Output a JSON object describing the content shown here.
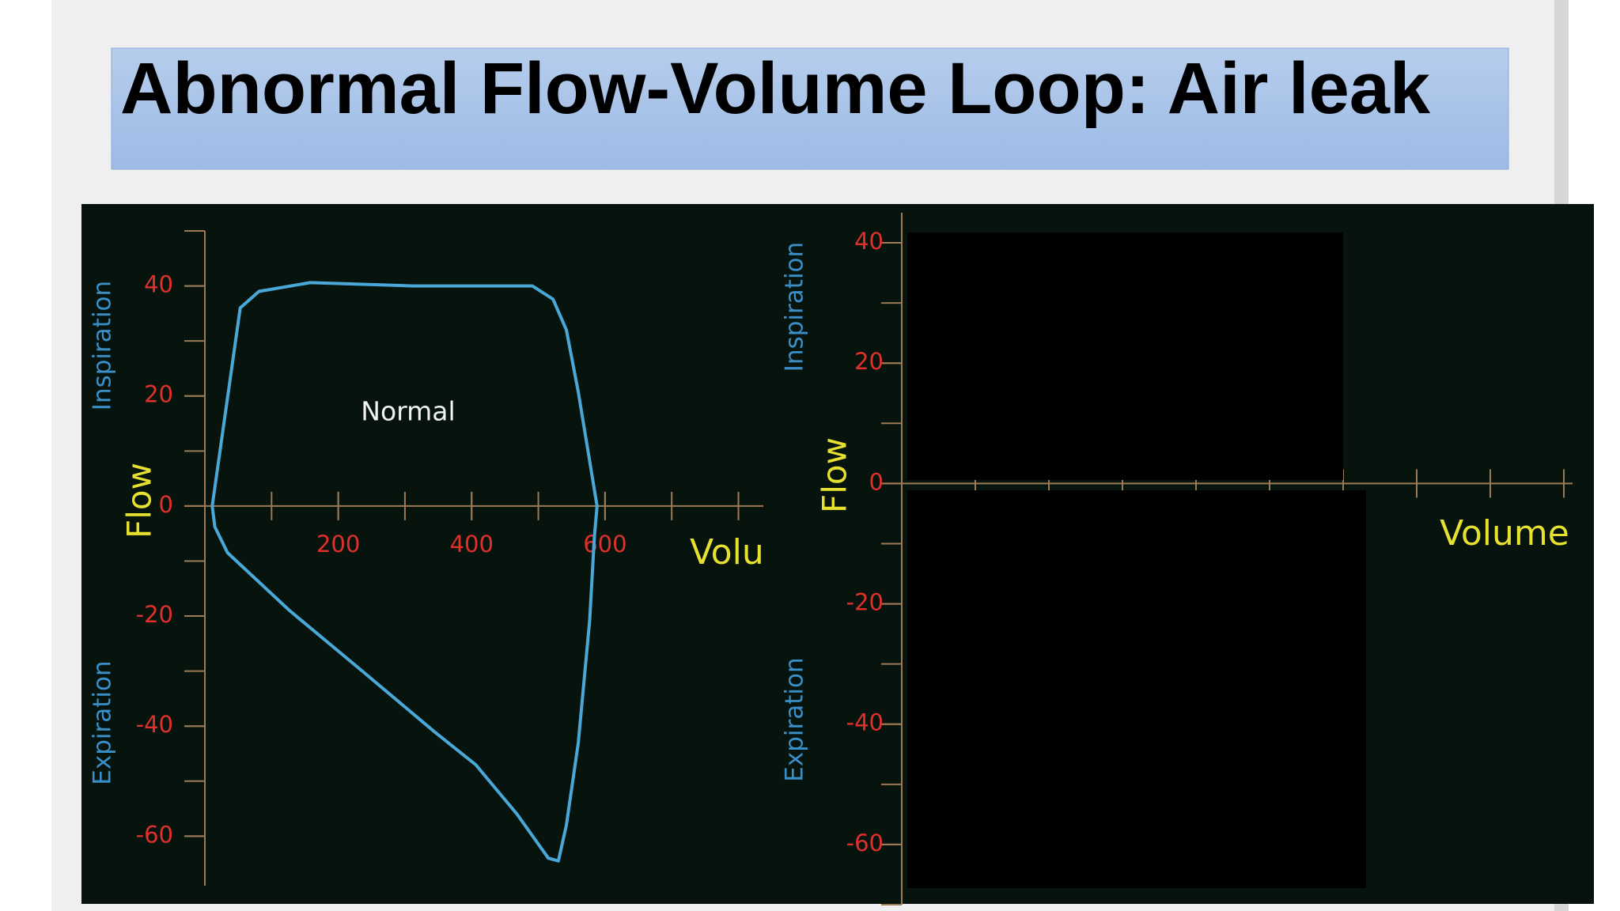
{
  "title": "Abnormal Flow-Volume Loop: Air leak",
  "chart_data": [
    {
      "type": "line",
      "x_label": "Volu",
      "y_label": "Flow",
      "annotations": [
        "Inspiration",
        "Expiration",
        "Normal"
      ],
      "color": "#4aa8d8",
      "x": [
        11,
        53,
        81,
        158,
        313,
        491,
        522,
        542,
        560,
        588,
        584,
        577,
        560,
        542,
        530,
        515,
        468,
        406,
        344,
        236,
        127,
        34,
        15,
        11
      ],
      "values": [
        0,
        36,
        39,
        40.6,
        40,
        40,
        37.6,
        32,
        20.7,
        0,
        -5.6,
        -20.7,
        -43,
        -58,
        -64.5,
        -64,
        -56,
        -47,
        -41,
        -30,
        -19,
        -8.5,
        -3.8,
        0
      ],
      "xlim": [
        0,
        835
      ],
      "xticks": [
        200,
        400,
        600
      ],
      "ylim": [
        -69,
        50
      ],
      "yticks": [
        40,
        20,
        0,
        -20,
        -40,
        -60
      ]
    },
    {
      "type": "line",
      "x_label": "Volume",
      "y_label": "Flow",
      "annotations": [
        "Inspiration",
        "Expiration"
      ],
      "ylim": [
        -70,
        45
      ],
      "yticks": [
        40,
        20,
        0,
        -20,
        -40,
        -60
      ]
    }
  ]
}
